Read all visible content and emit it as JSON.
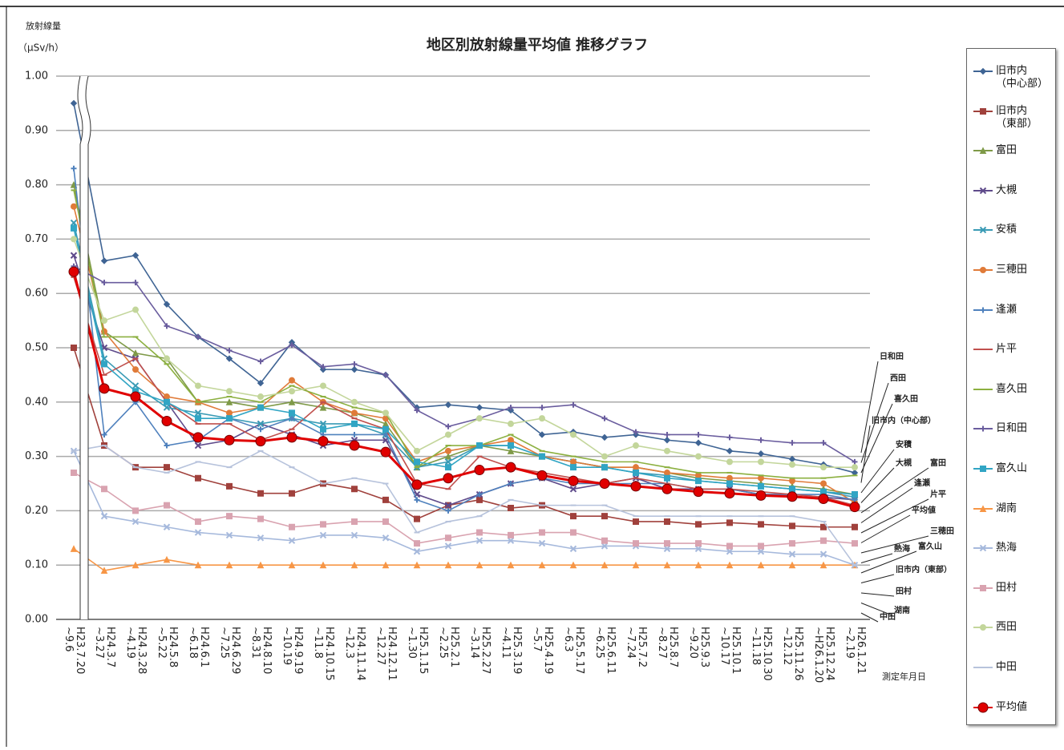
{
  "chart_data": {
    "type": "line",
    "title": "地区別放射線量平均値 推移グラフ",
    "y_label": "放射線量",
    "y_unit": "（μSv/h）",
    "x_label": "測定年月日",
    "categories": [
      "H23.7.20\n~9.6",
      "H24.3.7\n~3.27",
      "H24.3.28\n~4.19",
      "H24.5.8\n~5.22",
      "H24.6.1\n~6.18",
      "H24.6.29\n~7.25",
      "H24.8.10\n~8.31",
      "H24.9.19\n~10.19",
      "H24.10.15\n~11.8",
      "H24.11.14\n~12.3",
      "H24.12.11\n~12.27",
      "H25.1.15\n~1.30",
      "H25.2.1\n~2.25",
      "H25.2.27\n~3.14",
      "H25.3.19\n~4.11",
      "H25.4.19\n~5.7",
      "H25.5.17\n~6.3",
      "H25.6.11\n~6.25",
      "H25.7.2\n~7.24",
      "H25.8.7\n~8.27",
      "H25.9.3\n~9.20",
      "H25.10.1\n~10.17",
      "H25.10.30\n~11.18",
      "H25.11.26\n~12.12",
      "H25.12.24\n~H26.1.20",
      "H26.1.21\n~2.19"
    ],
    "ylim": [
      0,
      1
    ],
    "yticks": [
      {
        "value": 0,
        "label": "0.00"
      },
      {
        "value": 0.1,
        "label": "0.10"
      },
      {
        "value": 0.2,
        "label": "0.20"
      },
      {
        "value": 0.3,
        "label": "0.30"
      },
      {
        "value": 0.4,
        "label": "0.40"
      },
      {
        "value": 0.5,
        "label": "0.50"
      },
      {
        "value": 0.6,
        "label": "0.60"
      },
      {
        "value": 0.7,
        "label": "0.70"
      },
      {
        "value": 0.8,
        "label": "0.80"
      },
      {
        "value": 0.9,
        "label": "0.90"
      },
      {
        "value": 1,
        "label": "1.00"
      }
    ],
    "grid": true,
    "legend": "right",
    "series": [
      {
        "name": "旧市内\n（中心部）",
        "color": "#3f6494",
        "marker": "diamond",
        "values": [
          0.95,
          0.66,
          0.67,
          0.58,
          0.52,
          0.48,
          0.435,
          0.51,
          0.46,
          0.46,
          0.45,
          0.39,
          0.395,
          0.39,
          0.385,
          0.34,
          0.345,
          0.335,
          0.34,
          0.33,
          0.325,
          0.31,
          0.305,
          0.295,
          0.285,
          0.27
        ]
      },
      {
        "name": "旧市内\n（東部）",
        "color": "#a0413c",
        "marker": "square",
        "values": [
          0.5,
          0.32,
          0.28,
          0.28,
          0.26,
          0.245,
          0.232,
          0.232,
          0.25,
          0.24,
          0.22,
          0.185,
          0.21,
          0.22,
          0.205,
          0.21,
          0.19,
          0.19,
          0.18,
          0.18,
          0.175,
          0.178,
          0.175,
          0.172,
          0.17,
          0.17
        ]
      },
      {
        "name": "富田",
        "color": "#7f9a48",
        "marker": "triangle",
        "values": [
          0.8,
          0.53,
          0.49,
          0.48,
          0.4,
          0.4,
          0.39,
          0.4,
          0.39,
          0.38,
          0.36,
          0.28,
          0.3,
          0.32,
          0.31,
          0.3,
          0.29,
          0.28,
          0.28,
          0.27,
          0.26,
          0.255,
          0.25,
          0.245,
          0.24,
          0.23
        ]
      },
      {
        "name": "大槻",
        "color": "#5f4b8b",
        "marker": "x",
        "values": [
          0.67,
          0.5,
          0.48,
          0.4,
          0.32,
          0.33,
          0.36,
          0.34,
          0.32,
          0.33,
          0.33,
          0.23,
          0.21,
          0.23,
          0.25,
          0.26,
          0.24,
          0.25,
          0.26,
          0.24,
          0.24,
          0.24,
          0.23,
          0.23,
          0.225,
          0.22
        ]
      },
      {
        "name": "安積",
        "color": "#3a9bb5",
        "marker": "x",
        "values": [
          0.73,
          0.48,
          0.43,
          0.39,
          0.38,
          0.37,
          0.36,
          0.37,
          0.36,
          0.36,
          0.34,
          0.28,
          0.29,
          0.32,
          0.32,
          0.3,
          0.29,
          0.28,
          0.27,
          0.265,
          0.255,
          0.25,
          0.245,
          0.24,
          0.235,
          0.225
        ]
      },
      {
        "name": "三穂田",
        "color": "#e07b39",
        "marker": "circle",
        "values": [
          0.76,
          0.53,
          0.46,
          0.41,
          0.4,
          0.38,
          0.39,
          0.44,
          0.4,
          0.38,
          0.37,
          0.29,
          0.31,
          0.32,
          0.33,
          0.3,
          0.29,
          0.28,
          0.28,
          0.27,
          0.265,
          0.26,
          0.26,
          0.255,
          0.25,
          0.215
        ]
      },
      {
        "name": "逢瀬",
        "color": "#4f81bd",
        "marker": "plus",
        "values": [
          0.83,
          0.34,
          0.4,
          0.32,
          0.33,
          0.37,
          0.35,
          0.37,
          0.34,
          0.34,
          0.34,
          0.22,
          0.2,
          0.23,
          0.25,
          0.26,
          0.25,
          0.25,
          0.25,
          0.25,
          0.24,
          0.24,
          0.23,
          0.23,
          0.23,
          0.22
        ]
      },
      {
        "name": "片平",
        "color": "#c0504d",
        "marker": "dash",
        "values": [
          0.63,
          0.45,
          0.48,
          0.4,
          0.36,
          0.36,
          0.33,
          0.35,
          0.4,
          0.37,
          0.35,
          0.25,
          0.24,
          0.3,
          0.28,
          0.27,
          0.26,
          0.25,
          0.26,
          0.25,
          0.24,
          0.24,
          0.235,
          0.23,
          0.225,
          0.21
        ]
      },
      {
        "name": "喜久田",
        "color": "#8cb040",
        "marker": "dash",
        "values": [
          0.79,
          0.52,
          0.52,
          0.47,
          0.4,
          0.41,
          0.4,
          0.43,
          0.41,
          0.39,
          0.38,
          0.28,
          0.32,
          0.32,
          0.34,
          0.31,
          0.3,
          0.29,
          0.29,
          0.28,
          0.27,
          0.27,
          0.265,
          0.26,
          0.26,
          0.265
        ]
      },
      {
        "name": "日和田",
        "color": "#6a5d9e",
        "marker": "plus",
        "values": [
          0.65,
          0.62,
          0.62,
          0.54,
          0.52,
          0.495,
          0.475,
          0.505,
          0.465,
          0.47,
          0.45,
          0.385,
          0.355,
          0.37,
          0.39,
          0.39,
          0.395,
          0.37,
          0.345,
          0.34,
          0.34,
          0.335,
          0.33,
          0.325,
          0.325,
          0.29
        ]
      },
      {
        "name": "富久山",
        "color": "#31a5c4",
        "marker": "square",
        "values": [
          0.72,
          0.47,
          0.42,
          0.4,
          0.37,
          0.37,
          0.39,
          0.38,
          0.35,
          0.36,
          0.35,
          0.29,
          0.28,
          0.32,
          0.32,
          0.3,
          0.28,
          0.28,
          0.27,
          0.26,
          0.255,
          0.25,
          0.245,
          0.24,
          0.235,
          0.23
        ]
      },
      {
        "name": "湖南",
        "color": "#f79646",
        "marker": "triangle",
        "values": [
          0.13,
          0.09,
          0.1,
          0.11,
          0.1,
          0.1,
          0.1,
          0.1,
          0.1,
          0.1,
          0.1,
          0.1,
          0.1,
          0.1,
          0.1,
          0.1,
          0.1,
          0.1,
          0.1,
          0.1,
          0.1,
          0.1,
          0.1,
          0.1,
          0.1,
          0.1
        ]
      },
      {
        "name": "熱海",
        "color": "#a6b9dc",
        "marker": "x",
        "values": [
          0.31,
          0.19,
          0.18,
          0.17,
          0.16,
          0.155,
          0.15,
          0.145,
          0.155,
          0.155,
          0.15,
          0.125,
          0.135,
          0.145,
          0.145,
          0.14,
          0.13,
          0.135,
          0.135,
          0.13,
          0.13,
          0.125,
          0.125,
          0.12,
          0.12,
          0.1
        ]
      },
      {
        "name": "田村",
        "color": "#d9a3b0",
        "marker": "square",
        "values": [
          0.27,
          0.24,
          0.2,
          0.21,
          0.18,
          0.19,
          0.185,
          0.17,
          0.175,
          0.18,
          0.18,
          0.14,
          0.15,
          0.16,
          0.155,
          0.16,
          0.16,
          0.145,
          0.14,
          0.14,
          0.14,
          0.135,
          0.135,
          0.14,
          0.145,
          0.14
        ]
      },
      {
        "name": "西田",
        "color": "#c3d69b",
        "marker": "circle",
        "values": [
          0.7,
          0.55,
          0.57,
          0.48,
          0.43,
          0.42,
          0.41,
          0.42,
          0.43,
          0.4,
          0.38,
          0.31,
          0.34,
          0.37,
          0.36,
          0.37,
          0.34,
          0.3,
          0.32,
          0.31,
          0.3,
          0.29,
          0.29,
          0.285,
          0.28,
          0.28
        ]
      },
      {
        "name": "中田",
        "color": "#b7c3dc",
        "marker": "dash",
        "values": [
          0.31,
          0.32,
          0.28,
          0.27,
          0.29,
          0.28,
          0.31,
          0.28,
          0.25,
          0.26,
          0.25,
          0.16,
          0.18,
          0.19,
          0.22,
          0.21,
          0.21,
          0.21,
          0.19,
          0.19,
          0.19,
          0.19,
          0.19,
          0.19,
          0.18,
          0.1
        ]
      },
      {
        "name": "平均値",
        "color": "#e00000",
        "marker": "big-circle",
        "values": [
          0.64,
          0.425,
          0.41,
          0.365,
          0.335,
          0.33,
          0.328,
          0.335,
          0.328,
          0.32,
          0.308,
          0.248,
          0.26,
          0.275,
          0.28,
          0.265,
          0.255,
          0.25,
          0.245,
          0.24,
          0.235,
          0.232,
          0.228,
          0.226,
          0.222,
          0.207
        ]
      }
    ],
    "annotations": [
      "日和田",
      "西田",
      "喜久田",
      "旧市内（中心部）",
      "安積",
      "大槻",
      "富田",
      "逢瀬",
      "片平",
      "平均値",
      "三穂田",
      "熱海",
      "富久山",
      "旧市内（東部）",
      "田村",
      "湖南",
      "中田"
    ]
  }
}
